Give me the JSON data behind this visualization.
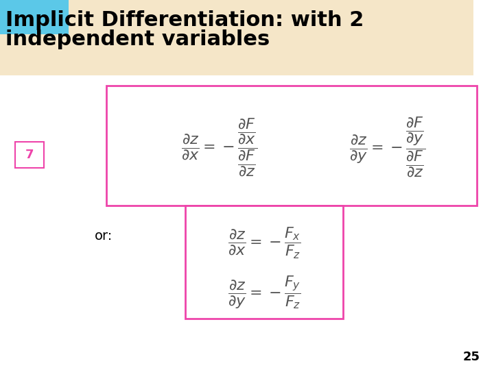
{
  "title_line1": "Implicit Differentiation: with 2",
  "title_line2": "independent variables",
  "title_bg_color": "#F5E6C8",
  "title_text_color": "#000000",
  "title_fontsize": 22,
  "slide_bg_color": "#FFFFFF",
  "accent_color_blue": "#5BC8E8",
  "number_label": "7",
  "or_text": "or:",
  "page_number": "25",
  "magenta_box_color": "#EE44AA",
  "formula1_latex": "$\\dfrac{\\partial z}{\\partial x} = -\\dfrac{\\dfrac{\\partial F}{\\partial x}}{\\dfrac{\\partial F}{\\partial z}}$",
  "formula2_latex": "$\\dfrac{\\partial z}{\\partial y} = -\\dfrac{\\dfrac{\\partial F}{\\partial y}}{\\dfrac{\\partial F}{\\partial z}}$",
  "formula3_latex": "$\\dfrac{\\partial z}{\\partial x} = -\\dfrac{F_x}{F_z}$",
  "formula4_latex": "$\\dfrac{\\partial z}{\\partial y} = -\\dfrac{F_y}{F_z}$"
}
